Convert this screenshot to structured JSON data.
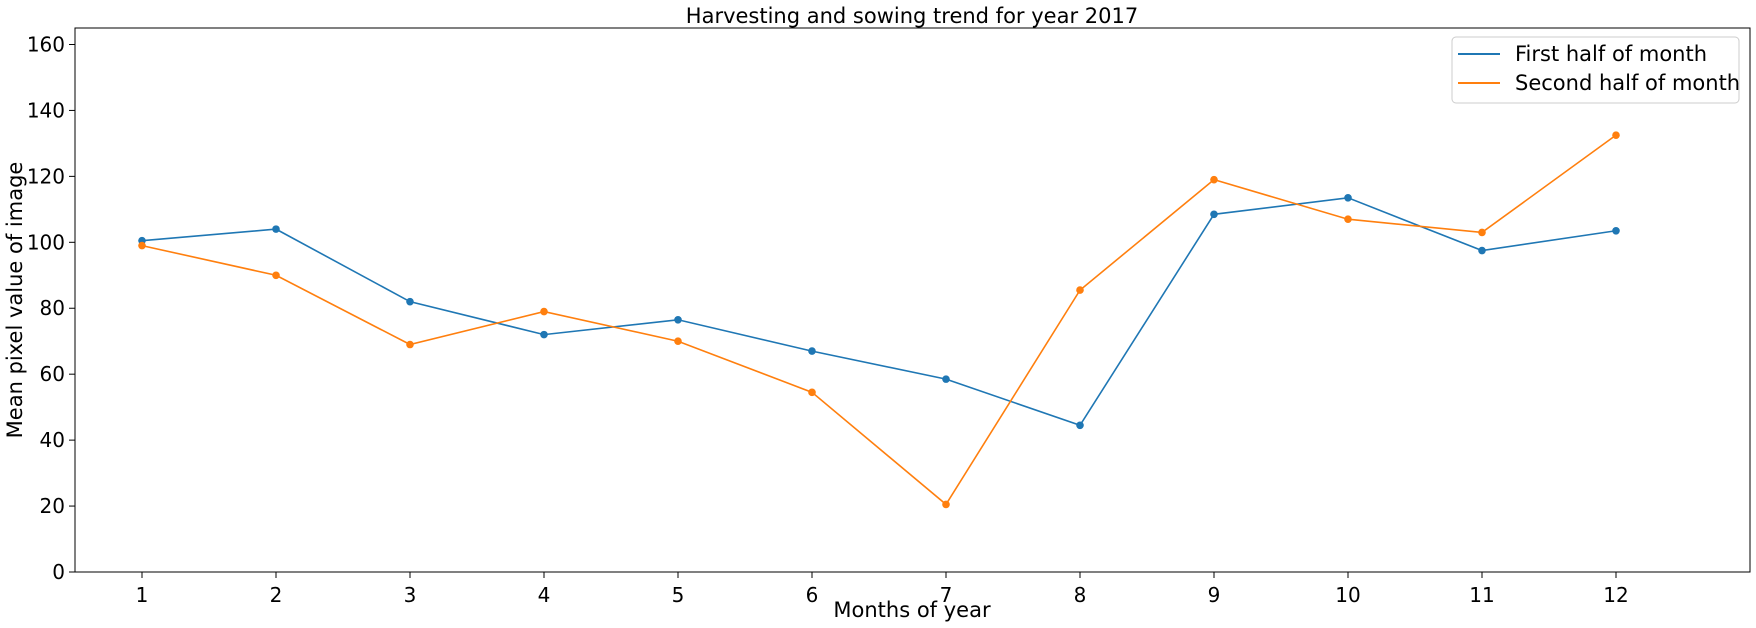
{
  "chart_data": {
    "type": "line",
    "title": "Harvesting and sowing trend for year 2017",
    "xlabel": "Months of year",
    "ylabel": "Mean pixel value of image",
    "x": [
      1,
      2,
      3,
      4,
      5,
      6,
      7,
      8,
      9,
      10,
      11,
      12
    ],
    "xlim": [
      0.5,
      13.0
    ],
    "ylim": [
      0,
      165
    ],
    "yticks": [
      0,
      20,
      40,
      60,
      80,
      100,
      120,
      140,
      160
    ],
    "grid": false,
    "legend_position": "top-right",
    "series": [
      {
        "name": "First half of month",
        "color": "#1f77b4",
        "values": [
          100.5,
          104,
          82,
          72,
          76.5,
          67,
          58.5,
          44.5,
          108.5,
          113.5,
          97.5,
          103.5
        ]
      },
      {
        "name": "Second half of month",
        "color": "#ff7f0e",
        "values": [
          99,
          90,
          69,
          79,
          70,
          54.5,
          20.5,
          85.5,
          119,
          107,
          103,
          132.5
        ]
      }
    ]
  }
}
